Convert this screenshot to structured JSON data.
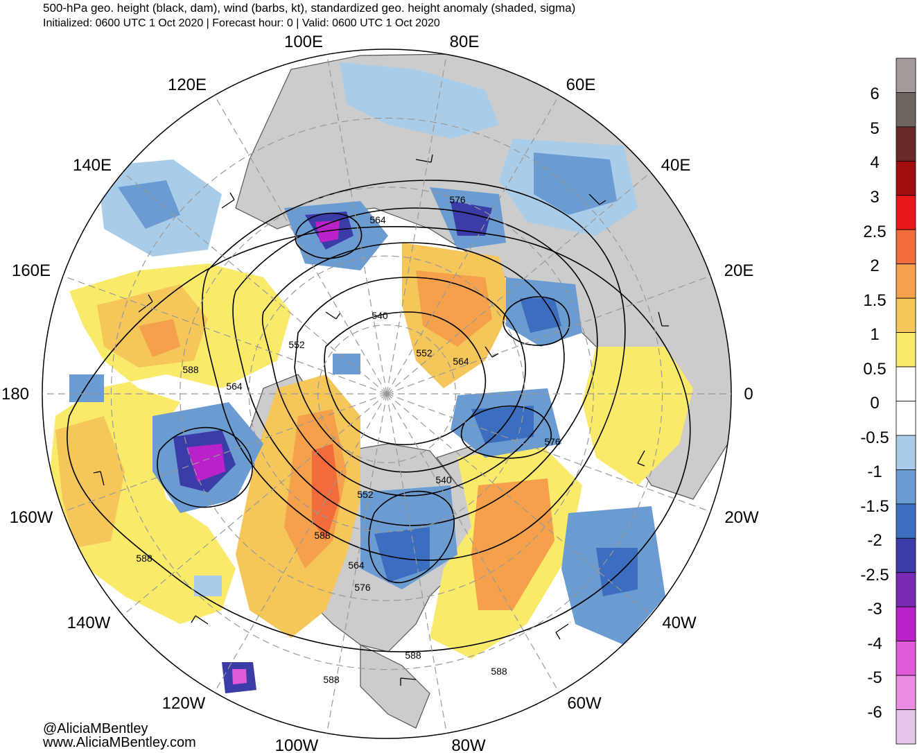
{
  "header": {
    "title": "500-hPa geo. height (black, dam), wind (barbs, kt), standardized geo. height anomaly (shaded, sigma)",
    "subtitle": "Initialized: 0600 UTC 1 Oct 2020 | Forecast hour: 0 | Valid: 0600 UTC 1 Oct 2020"
  },
  "map": {
    "projection": "north-polar-stereographic",
    "longitude_labels": [
      "100E",
      "80E",
      "120E",
      "60E",
      "140E",
      "40E",
      "160E",
      "20E",
      "180",
      "0",
      "160W",
      "20W",
      "140W",
      "40W",
      "120W",
      "60W",
      "100W",
      "80W"
    ],
    "contour_labels": [
      "576",
      "564",
      "540",
      "552",
      "552",
      "564",
      "588",
      "564",
      "576",
      "540",
      "552",
      "588",
      "564",
      "576",
      "588",
      "588",
      "588",
      "588"
    ],
    "colors": {
      "land": "#cccccc",
      "ocean": "#ffffff",
      "contour": "#000000",
      "coast": "#555555"
    }
  },
  "colorbar": {
    "labels": [
      "6",
      "5",
      "4",
      "3",
      "2.5",
      "2",
      "1.5",
      "1",
      "0.5",
      "0",
      "-0.5",
      "-1",
      "-1.5",
      "-2",
      "-2.5",
      "-3",
      "-4",
      "-5",
      "-6"
    ],
    "colors": [
      "#a59a9a",
      "#6e6560",
      "#6b2a2a",
      "#a40d0d",
      "#e8181a",
      "#f26b3a",
      "#f5a04a",
      "#f5c65a",
      "#faea6a",
      "#ffffff",
      "#ffffff",
      "#a9cde9",
      "#6a9bd1",
      "#3c6ec0",
      "#3c3ca8",
      "#7a2ab4",
      "#b822c8",
      "#e05ad8",
      "#eb8ce4",
      "#e6c4ea"
    ]
  },
  "credits": {
    "handle": "@AliciaMBentley",
    "website": "www.AliciaMBentley.com"
  }
}
